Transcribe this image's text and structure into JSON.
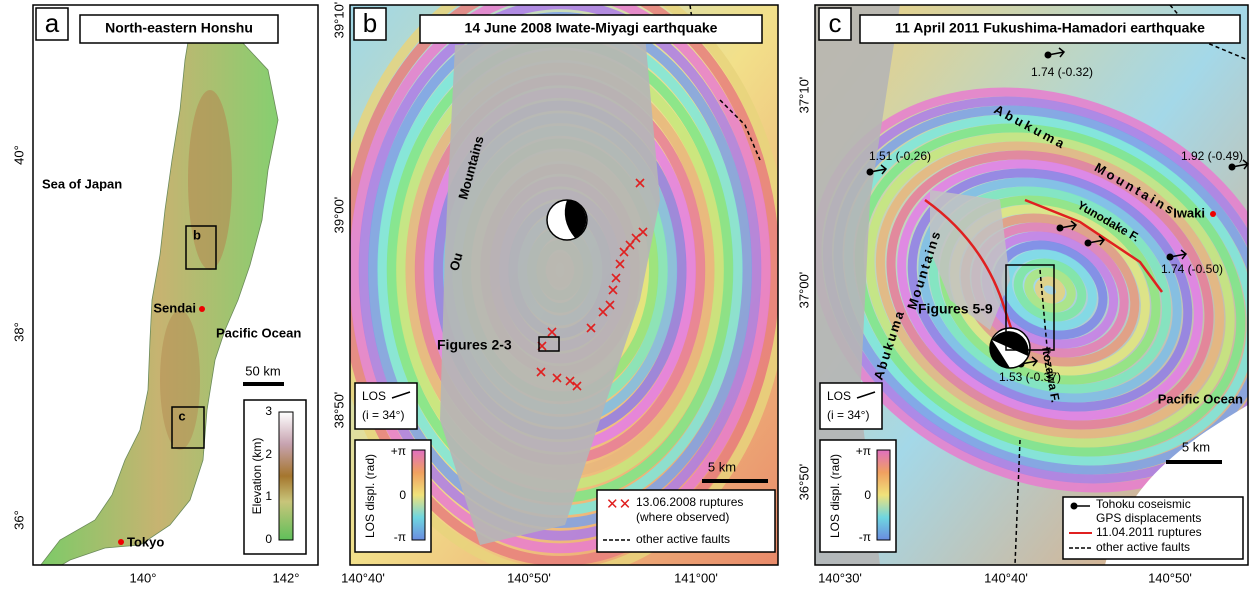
{
  "panels": [
    {
      "letter": "a",
      "title": "North-eastern Honshu",
      "labels": [
        "Sea of Japan",
        "Sendai",
        "Pacific Ocean",
        "Tokyo"
      ],
      "boxes": [
        "b",
        "c"
      ],
      "scale": "50 km",
      "colorbar": {
        "title": "Elevation (km)",
        "ticks": [
          "3",
          "2",
          "1",
          "0"
        ]
      },
      "yticks": [
        "40°",
        "38°",
        "36°"
      ],
      "xticks": [
        "140°",
        "142°"
      ]
    },
    {
      "letter": "b",
      "title": "14 June 2008 Iwate-Miyagi earthquake",
      "labels": [
        "Ou",
        "Mountains",
        "Figures 2-3"
      ],
      "los": [
        "LOS",
        "(i = 34°)"
      ],
      "colorbar": {
        "title": "LOS displ. (rad)",
        "ticks": [
          "+π",
          "0",
          "-π"
        ]
      },
      "scale": "5 km",
      "legend": [
        [
          "13.06.2008 ruptures",
          "(where observed)"
        ],
        [
          "other active faults"
        ]
      ],
      "yticks": [
        "39°10'",
        "39°00'",
        "38°50'"
      ],
      "xticks": [
        "140°40'",
        "140°50'",
        "141°00'"
      ]
    },
    {
      "letter": "c",
      "title": "11 April 2011 Fukushima-Hamadori earthquake",
      "labels": [
        "Abukuma",
        "Mountains",
        "Abukuma",
        "Mountains",
        "Yunodake F.",
        "Itozawa F.",
        "Iwaki",
        "Figures 5-9",
        "Pacific Ocean"
      ],
      "gps": [
        "1.74 (-0.32)",
        "1.51 (-0.26)",
        "1.92 (-0.49)",
        "1.74 (-0.50)",
        "1.53 (-0.37)"
      ],
      "los": [
        "LOS",
        "(i = 34°)"
      ],
      "colorbar": {
        "title": "LOS displ. (rad)",
        "ticks": [
          "+π",
          "0",
          "-π"
        ]
      },
      "scale": "5 km",
      "legend": [
        [
          "Tohoku coseismic",
          "GPS displacements"
        ],
        [
          "11.04.2011 ruptures"
        ],
        [
          "other active faults"
        ]
      ],
      "yticks": [
        "37°10'",
        "37°00'",
        "36°50'"
      ],
      "xticks": [
        "140°30'",
        "140°40'",
        "140°50'"
      ]
    }
  ]
}
